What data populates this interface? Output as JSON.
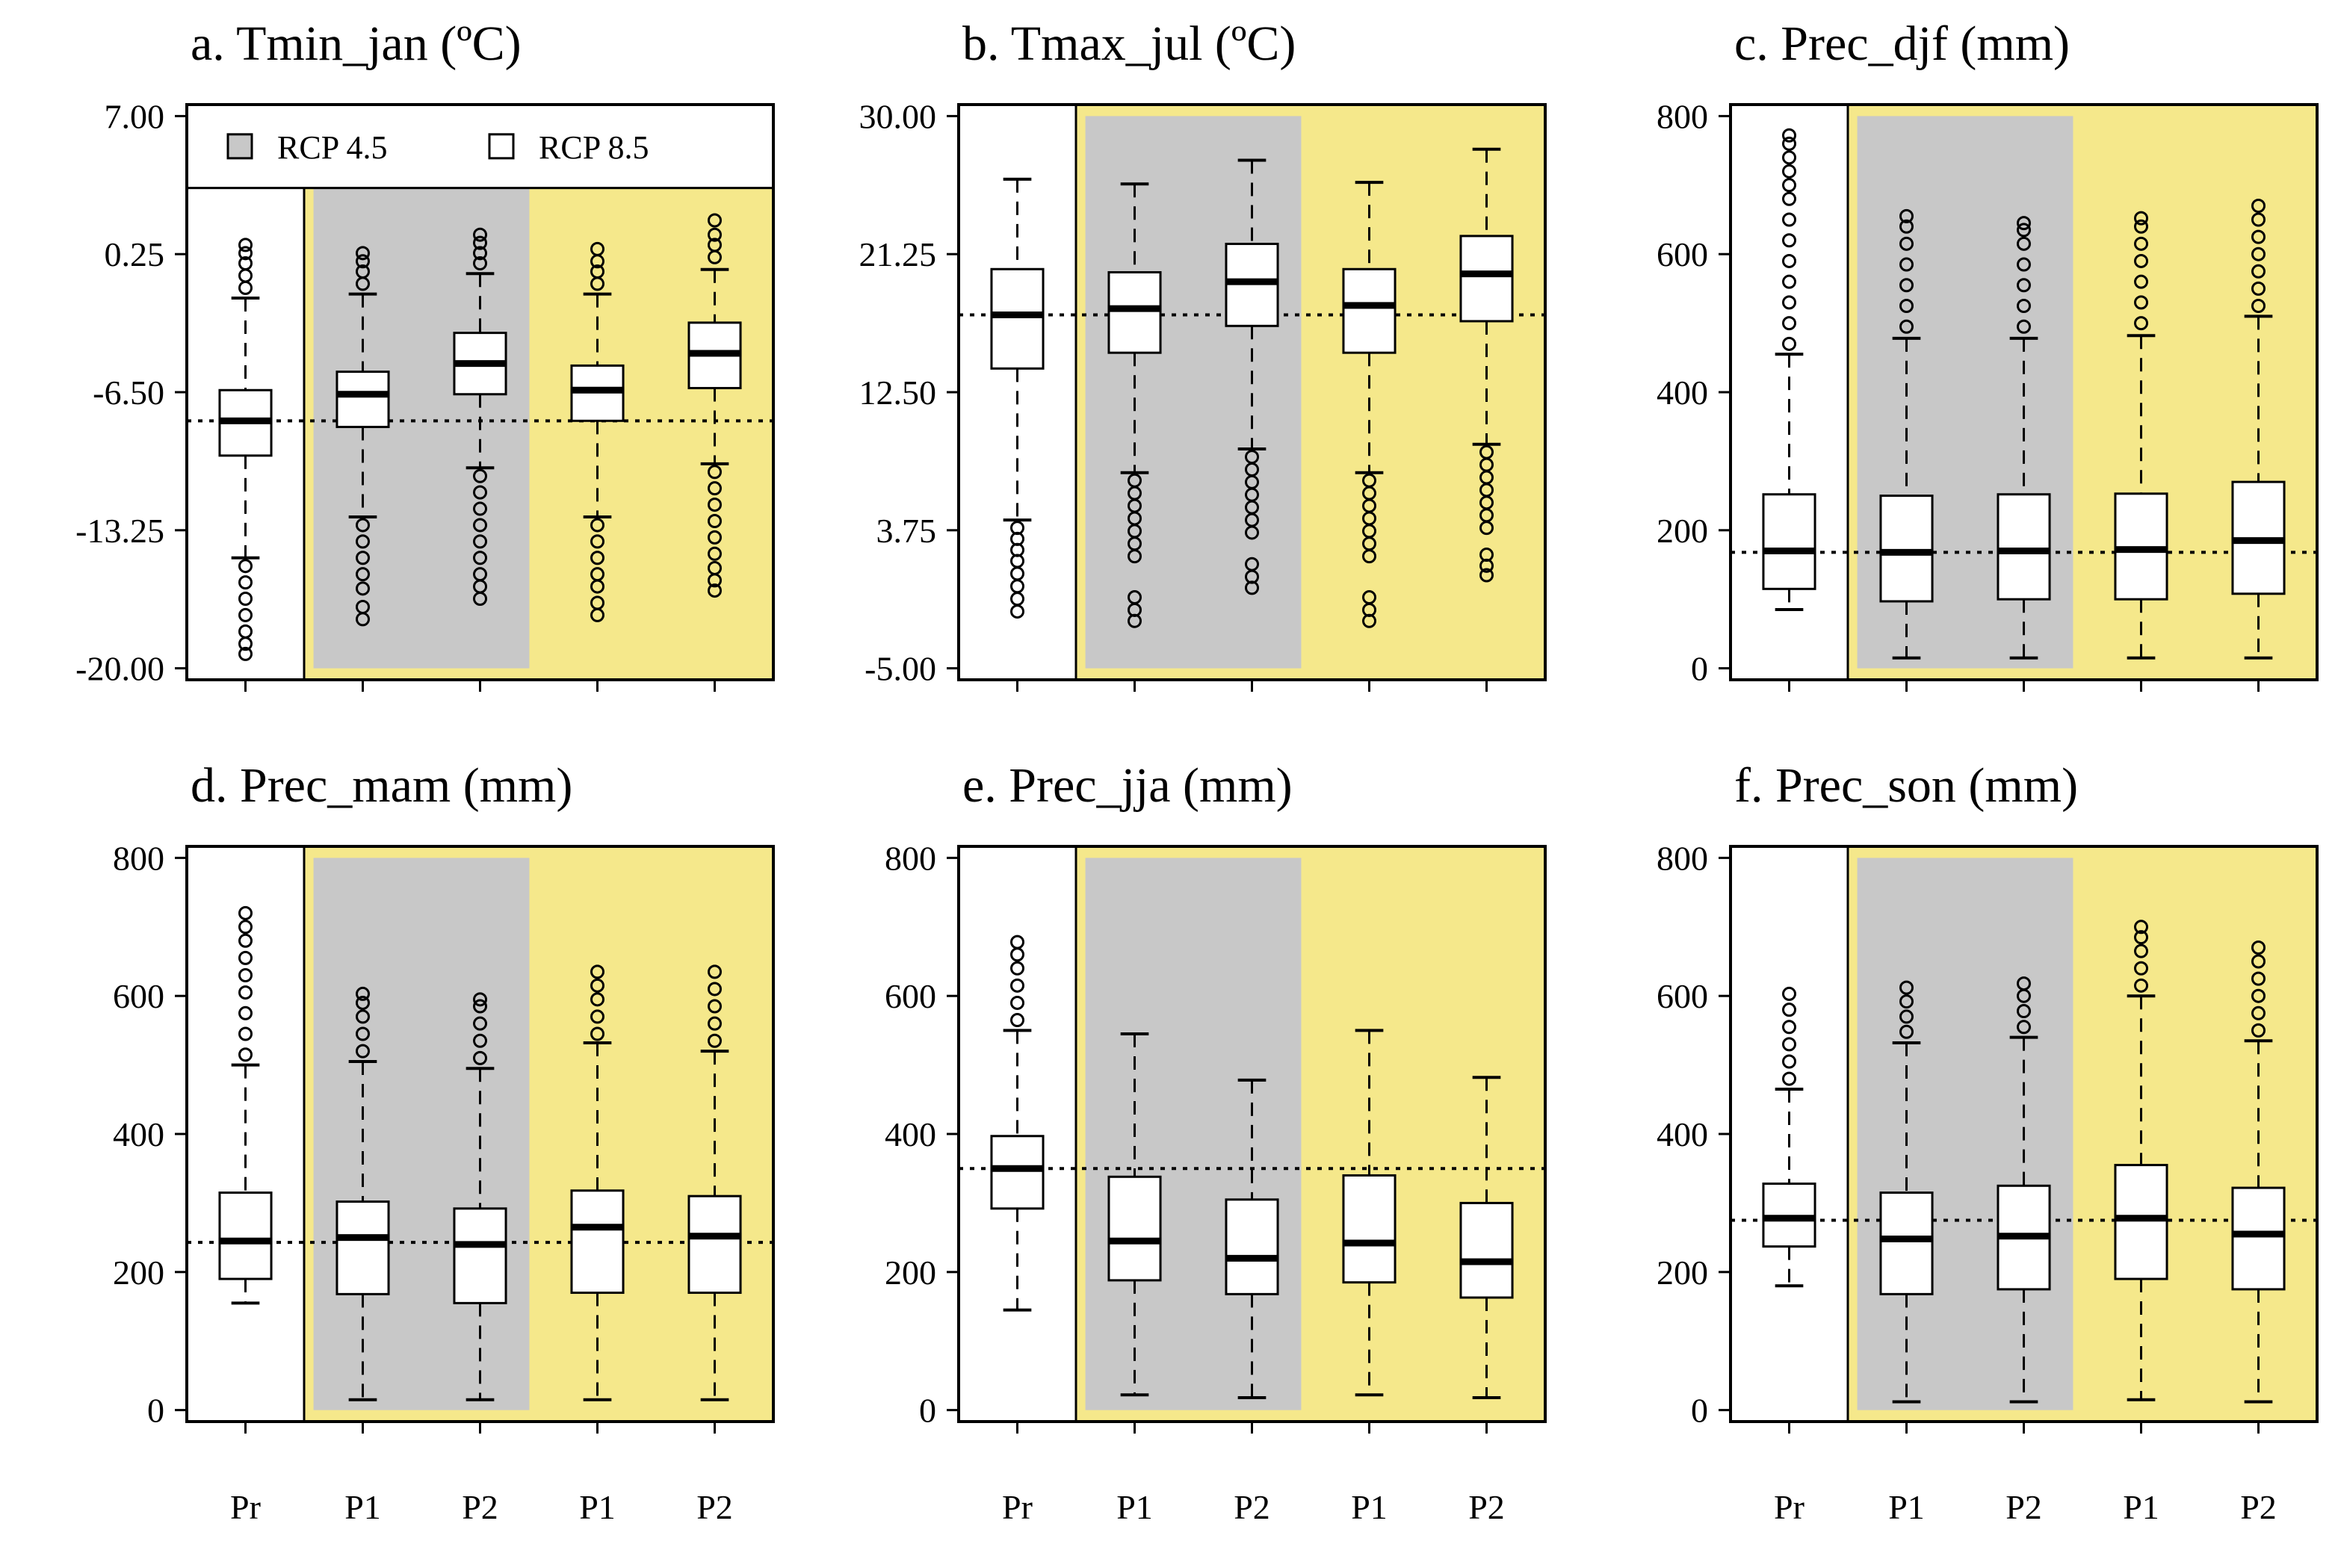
{
  "figure": {
    "colors": {
      "present_bg": "#ffffff",
      "rcp45_bg": "#c8c8c8",
      "rcp85_bg": "#f5e88b",
      "box_fill": "#ffffff",
      "line": "#000000"
    },
    "legend": {
      "entries": [
        {
          "label": "RCP 4.5",
          "swatch_color": "#c8c8c8"
        },
        {
          "label": "RCP 8.5",
          "swatch_color": "#ffffff"
        }
      ]
    }
  },
  "chart_data": [
    {
      "type": "box",
      "title": "a. Tmin_jan (ºC)",
      "ylim": [
        -20,
        7
      ],
      "yticks": [
        7,
        0.25,
        -6.5,
        -13.25,
        -20
      ],
      "ytick_labels": [
        "7.00",
        "0.25",
        "-6.50",
        "-13.25",
        "-20.00"
      ],
      "categories": [
        "Pr",
        "P1",
        "P2",
        "P1",
        "P2"
      ],
      "groups": [
        "Present",
        "RCP 4.5",
        "RCP 4.5",
        "RCP 8.5",
        "RCP 8.5"
      ],
      "reference_line": -7.9,
      "has_legend": true,
      "boxes": [
        {
          "q1": -9.6,
          "median": -7.9,
          "q3": -6.4,
          "wlow": -14.6,
          "whigh": -1.9,
          "outliers_low": [
            -15.0,
            -15.8,
            -16.6,
            -17.4,
            -18.2,
            -18.8,
            -19.3
          ],
          "outliers_high": [
            -1.4,
            -0.8,
            -0.2,
            0.3,
            0.7
          ]
        },
        {
          "q1": -8.2,
          "median": -6.6,
          "q3": -5.5,
          "wlow": -12.6,
          "whigh": -1.7,
          "outliers_low": [
            -13.0,
            -13.8,
            -14.6,
            -15.4,
            -16.1,
            -17.0,
            -17.6
          ],
          "outliers_high": [
            -1.2,
            -0.6,
            -0.1,
            0.3
          ]
        },
        {
          "q1": -6.6,
          "median": -5.1,
          "q3": -3.6,
          "wlow": -10.2,
          "whigh": -0.7,
          "outliers_low": [
            -10.6,
            -11.4,
            -12.2,
            -13.0,
            -13.8,
            -14.6,
            -15.4,
            -16.0,
            -16.6
          ],
          "outliers_high": [
            -0.2,
            0.3,
            0.8,
            1.2
          ]
        },
        {
          "q1": -7.9,
          "median": -6.4,
          "q3": -5.2,
          "wlow": -12.6,
          "whigh": -1.7,
          "outliers_low": [
            -13.0,
            -13.8,
            -14.6,
            -15.4,
            -16.0,
            -16.8,
            -17.4
          ],
          "outliers_high": [
            -1.2,
            -0.6,
            -0.1,
            0.5
          ]
        },
        {
          "q1": -6.3,
          "median": -4.6,
          "q3": -3.1,
          "wlow": -10.0,
          "whigh": -0.5,
          "outliers_low": [
            -10.4,
            -11.2,
            -12.0,
            -12.8,
            -13.6,
            -14.4,
            -15.1,
            -15.7,
            -16.2
          ],
          "outliers_high": [
            0.1,
            0.7,
            1.2,
            1.9
          ]
        }
      ]
    },
    {
      "type": "box",
      "title": "b. Tmax_jul (ºC)",
      "ylim": [
        -5,
        30
      ],
      "yticks": [
        30,
        21.25,
        12.5,
        3.75,
        -5
      ],
      "ytick_labels": [
        "30.00",
        "21.25",
        "12.50",
        "3.75",
        "-5.00"
      ],
      "categories": [
        "Pr",
        "P1",
        "P2",
        "P1",
        "P2"
      ],
      "groups": [
        "Present",
        "RCP 4.5",
        "RCP 4.5",
        "RCP 8.5",
        "RCP 8.5"
      ],
      "reference_line": 17.4,
      "has_legend": false,
      "boxes": [
        {
          "q1": 14.0,
          "median": 17.4,
          "q3": 20.3,
          "wlow": 4.4,
          "whigh": 26.0,
          "outliers_low": [
            3.9,
            3.2,
            2.5,
            1.8,
            1.0,
            0.2,
            -0.6,
            -1.4
          ],
          "outliers_high": []
        },
        {
          "q1": 15.0,
          "median": 17.8,
          "q3": 20.1,
          "wlow": 7.4,
          "whigh": 25.7,
          "outliers_low": [
            6.9,
            6.1,
            5.3,
            4.5,
            3.7,
            2.9,
            2.1,
            -0.5,
            -1.3,
            -2.0
          ],
          "outliers_high": []
        },
        {
          "q1": 16.7,
          "median": 19.5,
          "q3": 21.9,
          "wlow": 8.9,
          "whigh": 27.2,
          "outliers_low": [
            8.4,
            7.6,
            6.8,
            6.0,
            5.2,
            4.4,
            3.6,
            1.6,
            0.8,
            0.1
          ],
          "outliers_high": []
        },
        {
          "q1": 15.0,
          "median": 18.0,
          "q3": 20.3,
          "wlow": 7.4,
          "whigh": 25.8,
          "outliers_low": [
            6.9,
            6.1,
            5.3,
            4.5,
            3.7,
            2.9,
            2.1,
            -0.5,
            -1.3,
            -2.0
          ],
          "outliers_high": []
        },
        {
          "q1": 17.0,
          "median": 20.0,
          "q3": 22.4,
          "wlow": 9.2,
          "whigh": 27.9,
          "outliers_low": [
            8.7,
            7.9,
            7.1,
            6.3,
            5.5,
            4.7,
            3.9,
            2.2,
            1.5,
            0.9
          ],
          "outliers_high": []
        }
      ]
    },
    {
      "type": "box",
      "title": "c. Prec_djf (mm)",
      "ylim": [
        0,
        800
      ],
      "yticks": [
        800,
        600,
        400,
        200,
        0
      ],
      "ytick_labels": [
        "800",
        "600",
        "400",
        "200",
        "0"
      ],
      "categories": [
        "Pr",
        "P1",
        "P2",
        "P1",
        "P2"
      ],
      "groups": [
        "Present",
        "RCP 4.5",
        "RCP 4.5",
        "RCP 8.5",
        "RCP 8.5"
      ],
      "reference_line": 168,
      "has_legend": false,
      "boxes": [
        {
          "q1": 115,
          "median": 170,
          "q3": 252,
          "wlow": 85,
          "whigh": 455,
          "outliers_low": [],
          "outliers_high": [
            470,
            500,
            530,
            560,
            590,
            620,
            650,
            680,
            700,
            720,
            740,
            760,
            772
          ]
        },
        {
          "q1": 97,
          "median": 168,
          "q3": 250,
          "wlow": 15,
          "whigh": 478,
          "outliers_low": [],
          "outliers_high": [
            495,
            525,
            555,
            585,
            615,
            640,
            655
          ]
        },
        {
          "q1": 100,
          "median": 170,
          "q3": 252,
          "wlow": 15,
          "whigh": 478,
          "outliers_low": [],
          "outliers_high": [
            495,
            525,
            555,
            585,
            615,
            635,
            645
          ]
        },
        {
          "q1": 100,
          "median": 172,
          "q3": 253,
          "wlow": 15,
          "whigh": 482,
          "outliers_low": [],
          "outliers_high": [
            500,
            530,
            560,
            590,
            615,
            640,
            652
          ]
        },
        {
          "q1": 108,
          "median": 185,
          "q3": 270,
          "wlow": 15,
          "whigh": 510,
          "outliers_low": [],
          "outliers_high": [
            525,
            550,
            575,
            600,
            625,
            650,
            670
          ]
        }
      ]
    },
    {
      "type": "box",
      "title": "d. Prec_mam (mm)",
      "ylim": [
        0,
        800
      ],
      "yticks": [
        800,
        600,
        400,
        200,
        0
      ],
      "ytick_labels": [
        "800",
        "600",
        "400",
        "200",
        "0"
      ],
      "categories": [
        "Pr",
        "P1",
        "P2",
        "P1",
        "P2"
      ],
      "groups": [
        "Present",
        "RCP 4.5",
        "RCP 4.5",
        "RCP 8.5",
        "RCP 8.5"
      ],
      "reference_line": 243,
      "has_legend": false,
      "boxes": [
        {
          "q1": 190,
          "median": 245,
          "q3": 315,
          "wlow": 155,
          "whigh": 500,
          "outliers_low": [],
          "outliers_high": [
            515,
            545,
            575,
            605,
            630,
            655,
            680,
            700,
            720
          ]
        },
        {
          "q1": 168,
          "median": 250,
          "q3": 302,
          "wlow": 15,
          "whigh": 505,
          "outliers_low": [],
          "outliers_high": [
            520,
            545,
            570,
            590,
            603
          ]
        },
        {
          "q1": 155,
          "median": 240,
          "q3": 292,
          "wlow": 15,
          "whigh": 495,
          "outliers_low": [],
          "outliers_high": [
            510,
            535,
            560,
            585,
            595
          ]
        },
        {
          "q1": 170,
          "median": 265,
          "q3": 318,
          "wlow": 15,
          "whigh": 532,
          "outliers_low": [],
          "outliers_high": [
            545,
            570,
            595,
            615,
            635
          ]
        },
        {
          "q1": 170,
          "median": 252,
          "q3": 310,
          "wlow": 15,
          "whigh": 520,
          "outliers_low": [],
          "outliers_high": [
            535,
            560,
            585,
            610,
            635
          ]
        }
      ]
    },
    {
      "type": "box",
      "title": "e. Prec_jja (mm)",
      "ylim": [
        0,
        800
      ],
      "yticks": [
        800,
        600,
        400,
        200,
        0
      ],
      "ytick_labels": [
        "800",
        "600",
        "400",
        "200",
        "0"
      ],
      "categories": [
        "Pr",
        "P1",
        "P2",
        "P1",
        "P2"
      ],
      "groups": [
        "Present",
        "RCP 4.5",
        "RCP 4.5",
        "RCP 8.5",
        "RCP 8.5"
      ],
      "reference_line": 350,
      "has_legend": false,
      "boxes": [
        {
          "q1": 292,
          "median": 350,
          "q3": 397,
          "wlow": 145,
          "whigh": 550,
          "outliers_low": [],
          "outliers_high": [
            565,
            590,
            615,
            640,
            660,
            678
          ]
        },
        {
          "q1": 188,
          "median": 245,
          "q3": 338,
          "wlow": 22,
          "whigh": 545,
          "outliers_low": [],
          "outliers_high": []
        },
        {
          "q1": 168,
          "median": 220,
          "q3": 305,
          "wlow": 18,
          "whigh": 478,
          "outliers_low": [],
          "outliers_high": []
        },
        {
          "q1": 185,
          "median": 242,
          "q3": 340,
          "wlow": 22,
          "whigh": 550,
          "outliers_low": [],
          "outliers_high": []
        },
        {
          "q1": 163,
          "median": 215,
          "q3": 300,
          "wlow": 18,
          "whigh": 482,
          "outliers_low": [],
          "outliers_high": []
        }
      ]
    },
    {
      "type": "box",
      "title": "f. Prec_son (mm)",
      "ylim": [
        0,
        800
      ],
      "yticks": [
        800,
        600,
        400,
        200,
        0
      ],
      "ytick_labels": [
        "800",
        "600",
        "400",
        "200",
        "0"
      ],
      "categories": [
        "Pr",
        "P1",
        "P2",
        "P1",
        "P2"
      ],
      "groups": [
        "Present",
        "RCP 4.5",
        "RCP 4.5",
        "RCP 8.5",
        "RCP 8.5"
      ],
      "reference_line": 275,
      "has_legend": false,
      "boxes": [
        {
          "q1": 237,
          "median": 278,
          "q3": 328,
          "wlow": 180,
          "whigh": 465,
          "outliers_low": [],
          "outliers_high": [
            480,
            505,
            530,
            555,
            580,
            603
          ]
        },
        {
          "q1": 168,
          "median": 248,
          "q3": 315,
          "wlow": 12,
          "whigh": 532,
          "outliers_low": [],
          "outliers_high": [
            548,
            570,
            592,
            612
          ]
        },
        {
          "q1": 175,
          "median": 252,
          "q3": 325,
          "wlow": 12,
          "whigh": 540,
          "outliers_low": [],
          "outliers_high": [
            555,
            578,
            600,
            618
          ]
        },
        {
          "q1": 190,
          "median": 278,
          "q3": 355,
          "wlow": 15,
          "whigh": 600,
          "outliers_low": [],
          "outliers_high": [
            615,
            640,
            665,
            685,
            700
          ]
        },
        {
          "q1": 175,
          "median": 255,
          "q3": 322,
          "wlow": 12,
          "whigh": 535,
          "outliers_low": [],
          "outliers_high": [
            550,
            575,
            600,
            625,
            650,
            670
          ]
        }
      ]
    }
  ]
}
